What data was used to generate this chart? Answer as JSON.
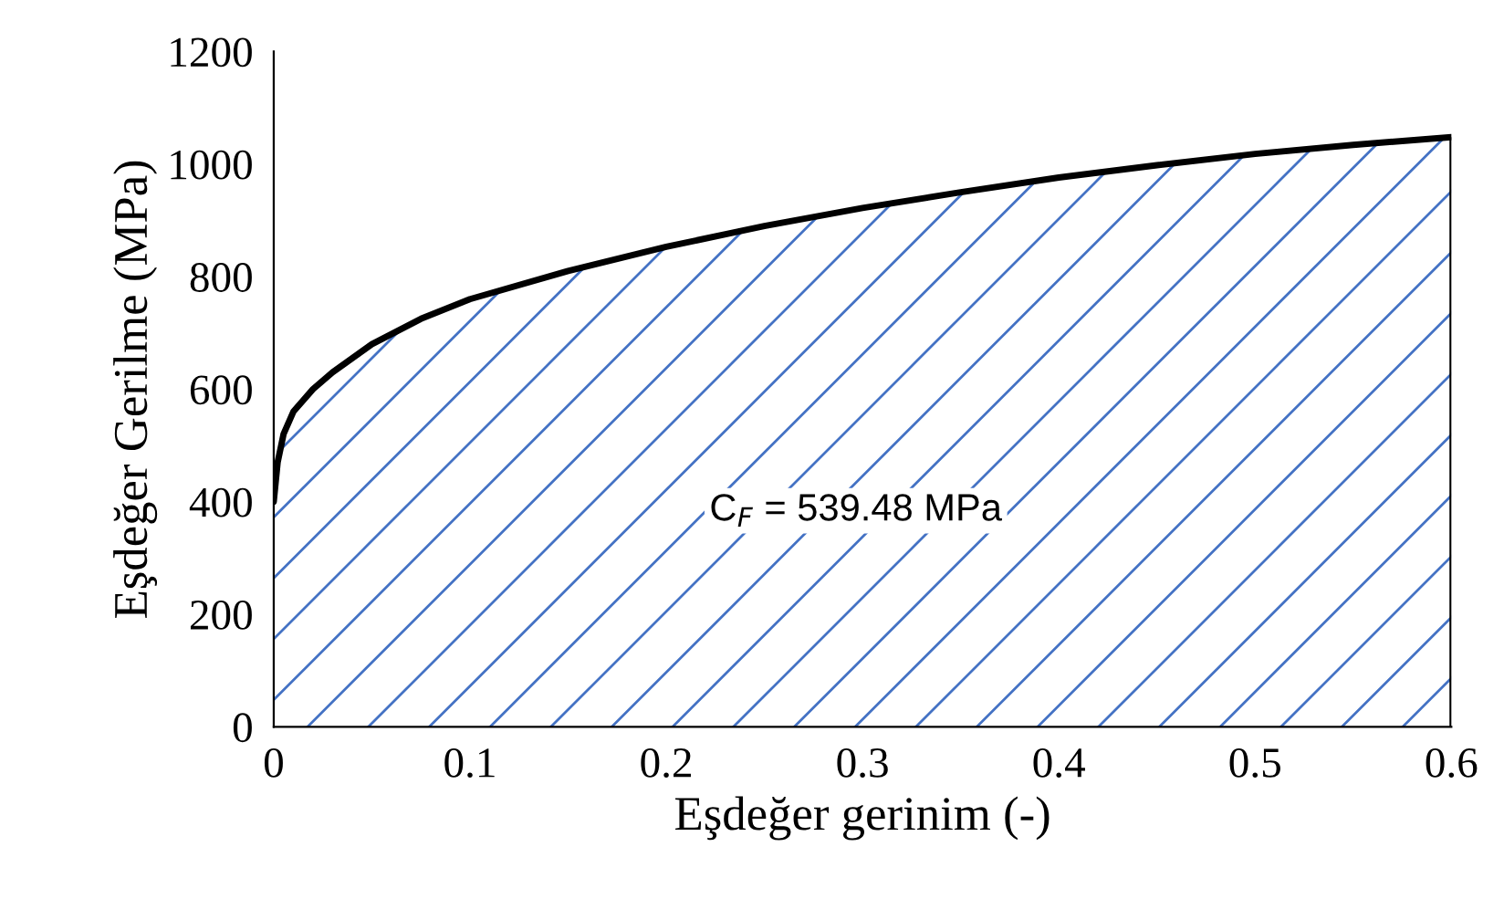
{
  "chart_data": {
    "type": "area",
    "xlabel": "Eşdeğer gerinim (-)",
    "ylabel": "Eşdeğer Gerilme (MPa)",
    "annotations": [
      "C$_{F}$ = 539.48 MPa"
    ],
    "x": [
      0,
      0.002,
      0.005,
      0.01,
      0.02,
      0.03,
      0.05,
      0.075,
      0.1,
      0.15,
      0.2,
      0.25,
      0.3,
      0.35,
      0.4,
      0.45,
      0.5,
      0.55,
      0.6
    ],
    "series": [
      {
        "color": "#4472c4",
        "values": [
          400,
          470,
          520,
          560,
          600,
          630,
          680,
          725,
          760,
          810,
          853,
          890,
          922,
          950,
          976,
          998,
          1018,
          1034,
          1048
        ]
      }
    ],
    "xlim": [
      0,
      0.6
    ],
    "ylim": [
      0,
      1200
    ],
    "xticks": [
      0,
      0.1,
      0.2,
      0.3,
      0.4,
      0.5,
      0.6
    ],
    "yticks": [
      0,
      200,
      400,
      600,
      800,
      1000,
      1200
    ],
    "grid": false,
    "legend": false
  }
}
